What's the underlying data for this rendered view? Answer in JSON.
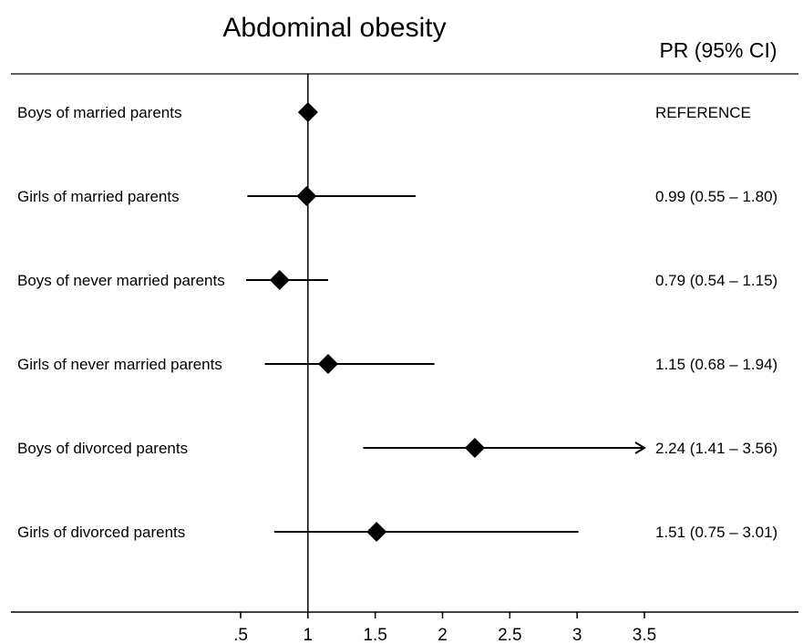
{
  "chart_data": {
    "type": "forest",
    "title": "Abdominal obesity",
    "estimate_header": "PR (95% CI)",
    "xlim": [
      0.5,
      3.5
    ],
    "reference_value": 1,
    "ticks": [
      0.5,
      1,
      1.5,
      2,
      2.5,
      3,
      3.5
    ],
    "tick_labels": [
      ".5",
      "1",
      "1.5",
      "2",
      "2.5",
      "3",
      "3.5"
    ],
    "rows": [
      {
        "label": "Boys of married parents",
        "pr": 1.0,
        "lo": null,
        "hi": null,
        "estimate_text": "REFERENCE",
        "arrow_right": false
      },
      {
        "label": "Girls of married parents",
        "pr": 0.99,
        "lo": 0.55,
        "hi": 1.8,
        "estimate_text": "0.99 (0.55 – 1.80)",
        "arrow_right": false
      },
      {
        "label": "Boys of never married parents",
        "pr": 0.79,
        "lo": 0.54,
        "hi": 1.15,
        "estimate_text": "0.79 (0.54 – 1.15)",
        "arrow_right": false
      },
      {
        "label": "Girls of never married parents",
        "pr": 1.15,
        "lo": 0.68,
        "hi": 1.94,
        "estimate_text": "1.15 (0.68 – 1.94)",
        "arrow_right": false
      },
      {
        "label": "Boys of divorced parents",
        "pr": 2.24,
        "lo": 1.41,
        "hi": 3.56,
        "estimate_text": "2.24 (1.41 – 3.56)",
        "arrow_right": true
      },
      {
        "label": "Girls of divorced parents",
        "pr": 1.51,
        "lo": 0.75,
        "hi": 3.01,
        "estimate_text": "1.51 (0.75 – 3.01)",
        "arrow_right": false
      }
    ]
  }
}
